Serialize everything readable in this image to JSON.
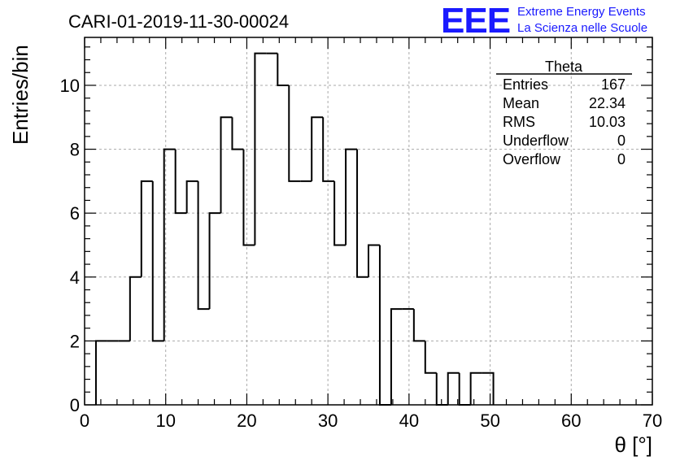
{
  "title": "CARI-01-2019-11-30-00024",
  "logo": {
    "mark": "EEE",
    "line1": "Extreme Energy Events",
    "line2": "La Scienza nelle Scuole",
    "color": "#1a1aff"
  },
  "stats": {
    "title": "Theta",
    "rows": [
      {
        "label": "Entries",
        "value": "167"
      },
      {
        "label": "Mean",
        "value": "22.34"
      },
      {
        "label": "RMS",
        "value": "10.03"
      },
      {
        "label": "Underflow",
        "value": "0"
      },
      {
        "label": "Overflow",
        "value": "0"
      }
    ]
  },
  "chart_data": {
    "type": "bar",
    "style": "step-histogram",
    "title": "CARI-01-2019-11-30-00024",
    "xlabel": "θ [°]",
    "ylabel": "Entries/bin",
    "xlim": [
      0,
      70
    ],
    "ylim": [
      0,
      11.5
    ],
    "grid": true,
    "bin_edges": [
      1.4,
      2.8,
      4.2,
      5.6,
      7.0,
      8.4,
      9.8,
      11.2,
      12.6,
      14.0,
      15.4,
      16.8,
      18.2,
      19.6,
      21.0,
      22.4,
      23.8,
      25.2,
      26.6,
      28.0,
      29.4,
      30.8,
      32.2,
      33.6,
      35.0,
      36.4,
      37.8,
      39.2,
      40.6,
      42.0,
      43.4,
      44.8,
      46.2,
      47.6,
      49.0,
      50.4
    ],
    "values": [
      2,
      2,
      2,
      4,
      7,
      2,
      8,
      6,
      7,
      3,
      6,
      9,
      8,
      5,
      11,
      11,
      10,
      7,
      7,
      9,
      7,
      5,
      8,
      4,
      5,
      0,
      3,
      3,
      2,
      1,
      0,
      1,
      0,
      1,
      1
    ],
    "xticks": [
      0,
      10,
      20,
      30,
      40,
      50,
      60,
      70
    ],
    "yticks": [
      0,
      2,
      4,
      6,
      8,
      10
    ]
  }
}
